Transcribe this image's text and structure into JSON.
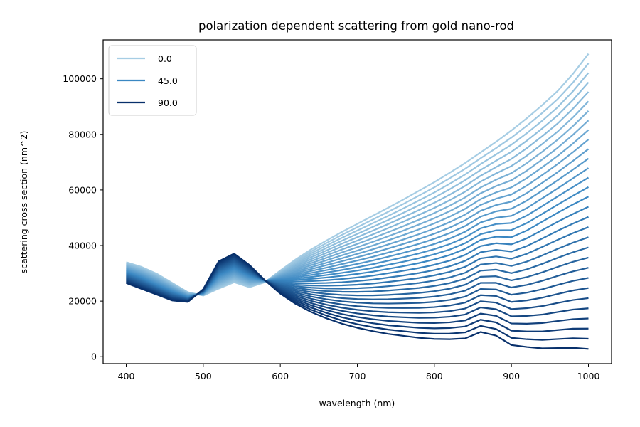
{
  "chart_data": {
    "type": "line",
    "title": "polarization dependent scattering from gold nano-rod",
    "xlabel": "wavelength (nm)",
    "ylabel": "scattering cross section (nm^2)",
    "xlim": [
      370,
      1030
    ],
    "ylim": [
      -2500,
      114000
    ],
    "xticks": [
      400,
      500,
      600,
      700,
      800,
      900,
      1000
    ],
    "yticks": [
      0,
      20000,
      40000,
      60000,
      80000,
      100000
    ],
    "legend": {
      "placement": "top-left",
      "entries": [
        "0.0",
        "45.0",
        "90.0"
      ]
    },
    "colormap": [
      "#a6cde4",
      "#3a87c2",
      "#08306b"
    ],
    "x": [
      400,
      420,
      440,
      460,
      480,
      500,
      520,
      540,
      560,
      580,
      600,
      620,
      640,
      660,
      680,
      700,
      720,
      740,
      760,
      780,
      800,
      820,
      840,
      860,
      880,
      900,
      920,
      940,
      960,
      980,
      1000
    ],
    "series": [
      {
        "name": "0.0",
        "values": [
          34000,
          32300,
          29800,
          26500,
          23200,
          22000,
          24500,
          26800,
          25000,
          26800,
          31000,
          35000,
          38600,
          41800,
          44900,
          47800,
          50700,
          53600,
          56600,
          59700,
          62800,
          66200,
          69700,
          73500,
          77300,
          81400,
          85800,
          90500,
          95600,
          101800,
          109000
        ]
      },
      {
        "name": "45.0",
        "values": [
          30300,
          28200,
          25600,
          23200,
          21300,
          23000,
          29500,
          32000,
          29200,
          27400,
          27500,
          27600,
          28000,
          28500,
          29100,
          29800,
          30600,
          31600,
          32600,
          33700,
          35000,
          36600,
          38800,
          42000,
          43200,
          43000,
          45400,
          48600,
          51800,
          54800,
          57600
        ]
      },
      {
        "name": "90.0",
        "values": [
          26500,
          24400,
          22300,
          20200,
          19700,
          24300,
          34300,
          37100,
          33000,
          27500,
          22700,
          19000,
          16100,
          13800,
          11900,
          10400,
          9200,
          8200,
          7500,
          6800,
          6400,
          6300,
          6600,
          8900,
          7600,
          4200,
          3500,
          3000,
          3100,
          3200,
          2800
        ]
      }
    ]
  }
}
